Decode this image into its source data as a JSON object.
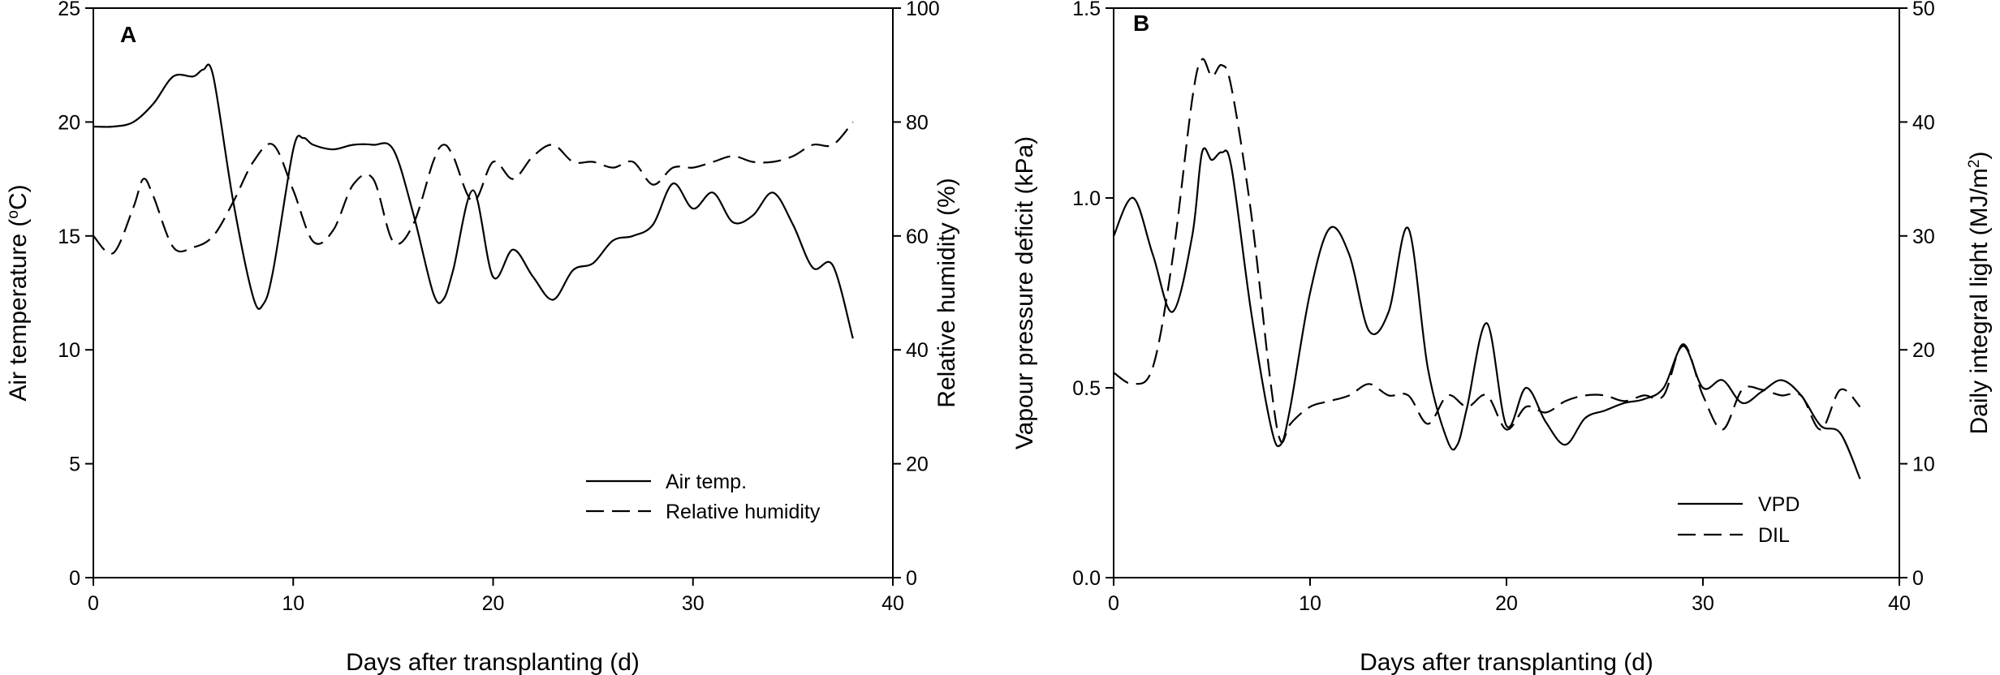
{
  "chart_data": [
    {
      "type": "line",
      "panel_label": "A",
      "xlabel": "Days after transplanting (d)",
      "xlim": [
        0,
        40
      ],
      "xticks": [
        0,
        10,
        20,
        30,
        40
      ],
      "ylabel_left_pre": "Air temperature (",
      "ylabel_left_sup": "o",
      "ylabel_left_post": "C)",
      "ylim_left": [
        0,
        25
      ],
      "yticks_left": [
        0,
        5,
        10,
        15,
        20,
        25
      ],
      "ylabel_right": "Relative humidity (%)",
      "ylim_right": [
        0,
        100
      ],
      "yticks_right": [
        0,
        20,
        40,
        60,
        80,
        100
      ],
      "legend_position": "bottom-right",
      "series": [
        {
          "name": "Air temp.",
          "axis": "left",
          "dash": "solid",
          "x": [
            0,
            1,
            2,
            3,
            4,
            5,
            5.5,
            6,
            7,
            8,
            8.5,
            9,
            10,
            10.5,
            11,
            12,
            13,
            14,
            15,
            16,
            17,
            17.5,
            18,
            19,
            20,
            21,
            22,
            23,
            24,
            25,
            26,
            27,
            28,
            29,
            30,
            31,
            32,
            33,
            34,
            35,
            36,
            37,
            38
          ],
          "y": [
            19.8,
            19.8,
            20.0,
            20.8,
            22.0,
            22.0,
            22.3,
            22.0,
            16.5,
            12.3,
            12.0,
            13.5,
            18.8,
            19.3,
            19.0,
            18.8,
            19.0,
            19.0,
            18.8,
            16.0,
            12.5,
            12.2,
            13.5,
            17.0,
            13.2,
            14.4,
            13.2,
            12.2,
            13.5,
            13.8,
            14.8,
            15.0,
            15.5,
            17.3,
            16.2,
            16.9,
            15.6,
            15.9,
            16.9,
            15.5,
            13.6,
            13.7,
            10.5
          ]
        },
        {
          "name": "Relative humidity",
          "axis": "right",
          "dash": "dashed",
          "x": [
            0,
            1,
            2,
            2.5,
            3,
            4,
            5,
            6,
            7,
            8,
            9,
            10,
            11,
            12,
            13,
            14,
            15,
            16,
            17,
            17.5,
            18,
            19,
            20,
            21,
            22,
            23,
            24,
            25,
            26,
            27,
            28,
            29,
            30,
            31,
            32,
            33,
            34,
            35,
            36,
            37,
            38
          ],
          "y": [
            60,
            57,
            65,
            70,
            67,
            58,
            58,
            60,
            66,
            73,
            76,
            68,
            59,
            61,
            69,
            70,
            59,
            62,
            73,
            76,
            74,
            66,
            73,
            70,
            74,
            76,
            73,
            73,
            72,
            73,
            69,
            72,
            72,
            73,
            74,
            73,
            73,
            74,
            76,
            76,
            80
          ]
        }
      ]
    },
    {
      "type": "line",
      "panel_label": "B",
      "xlabel": "Days after transplanting (d)",
      "xlim": [
        0,
        40
      ],
      "xticks": [
        0,
        10,
        20,
        30,
        40
      ],
      "ylabel_left": "Vapour pressure deficit (kPa)",
      "ylim_left": [
        0,
        1.5
      ],
      "yticks_left": [
        0.0,
        0.5,
        1.0,
        1.5
      ],
      "ytick_labels_left": [
        "0.0",
        "0.5",
        "1.0",
        "1.5"
      ],
      "ylabel_right_pre": "Daily integral light (MJ/m",
      "ylabel_right_sup": "2",
      "ylabel_right_post": ")",
      "ylim_right": [
        0,
        50
      ],
      "yticks_right": [
        0,
        10,
        20,
        30,
        40,
        50
      ],
      "legend_position": "bottom-right",
      "series": [
        {
          "name": "VPD",
          "axis": "left",
          "dash": "solid",
          "x": [
            0,
            1,
            2,
            3,
            4,
            4.5,
            5,
            5.5,
            6,
            7,
            8,
            8.5,
            9,
            10,
            11,
            12,
            13,
            14,
            15,
            16,
            17,
            17.5,
            18,
            19,
            20,
            21,
            22,
            23,
            24,
            25,
            26,
            27,
            28,
            29,
            30,
            31,
            32,
            33,
            34,
            35,
            36,
            37,
            38
          ],
          "y": [
            0.9,
            1.0,
            0.85,
            0.7,
            0.9,
            1.12,
            1.1,
            1.12,
            1.08,
            0.7,
            0.4,
            0.35,
            0.45,
            0.75,
            0.92,
            0.85,
            0.65,
            0.7,
            0.92,
            0.55,
            0.36,
            0.35,
            0.45,
            0.67,
            0.4,
            0.5,
            0.41,
            0.35,
            0.42,
            0.44,
            0.46,
            0.47,
            0.5,
            0.61,
            0.5,
            0.52,
            0.46,
            0.49,
            0.52,
            0.48,
            0.4,
            0.38,
            0.26
          ]
        },
        {
          "name": "DIL",
          "axis": "right",
          "dash": "dashed",
          "x": [
            0,
            1,
            2,
            3,
            4,
            4.5,
            5,
            5.5,
            6,
            7,
            8,
            8.5,
            9,
            10,
            11,
            12,
            13,
            14,
            15,
            16,
            17,
            18,
            19,
            20,
            21,
            22,
            23,
            24,
            25,
            26,
            27,
            28,
            29,
            30,
            31,
            32,
            33,
            34,
            35,
            36,
            37,
            38
          ],
          "y": [
            18,
            17,
            18.5,
            28,
            42,
            45.5,
            44,
            45,
            43,
            32,
            17,
            12,
            13.5,
            15,
            15.5,
            16,
            17,
            16,
            16,
            13.5,
            16,
            15,
            16,
            13,
            15,
            14.5,
            15.5,
            16,
            16,
            15.5,
            16,
            16,
            20.5,
            16,
            13,
            16.5,
            16.5,
            16,
            16,
            13,
            16.5,
            15
          ]
        }
      ]
    }
  ]
}
